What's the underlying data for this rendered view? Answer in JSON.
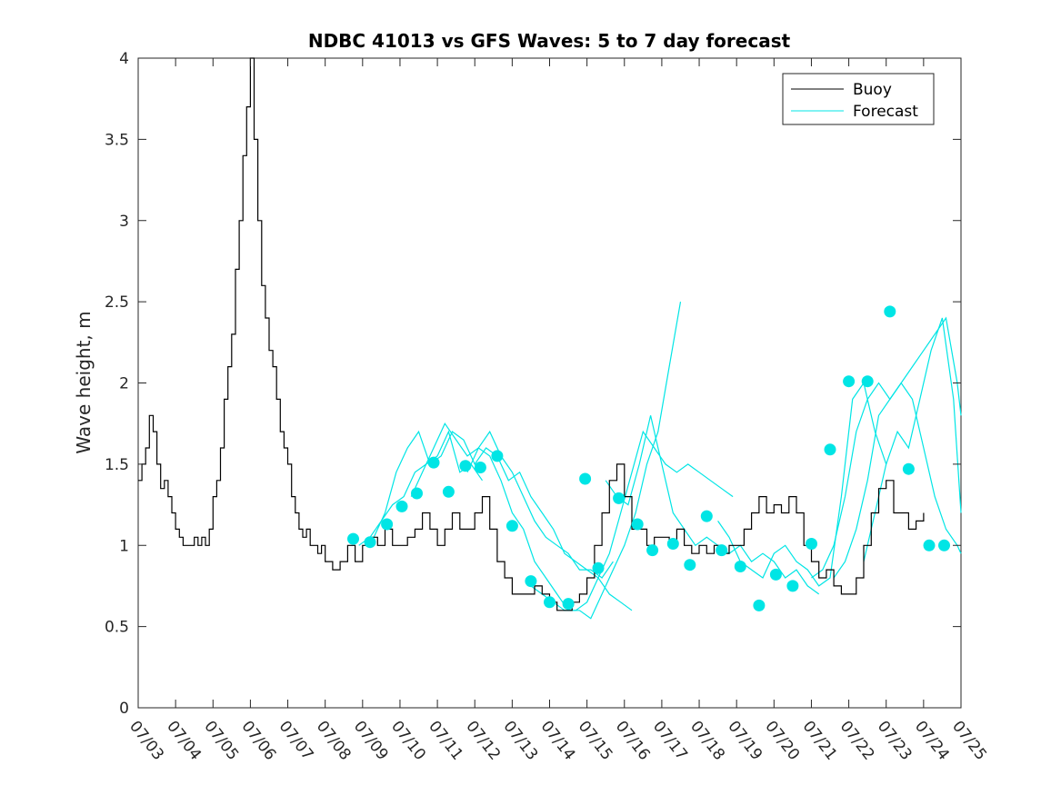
{
  "chart_data": {
    "type": "line",
    "title": "NDBC 41013 vs GFS Waves: 5 to 7 day forecast",
    "xlabel": "",
    "ylabel": "Wave height, m",
    "xlim": [
      0,
      22
    ],
    "ylim": [
      0,
      4
    ],
    "grid": false,
    "legend_position": "top-right",
    "x_tick_labels": [
      "07/03",
      "07/04",
      "07/05",
      "07/06",
      "07/07",
      "07/08",
      "07/09",
      "07/10",
      "07/11",
      "07/12",
      "07/13",
      "07/14",
      "07/15",
      "07/16",
      "07/17",
      "07/18",
      "07/19",
      "07/20",
      "07/21",
      "07/22",
      "07/23",
      "07/24",
      "07/25"
    ],
    "y_ticks": [
      0,
      0.5,
      1,
      1.5,
      2,
      2.5,
      3,
      3.5,
      4
    ],
    "y_tick_labels": [
      "0",
      "0.5",
      "1",
      "1.5",
      "2",
      "2.5",
      "3",
      "3.5",
      "4"
    ],
    "x_unit_note": "x values are days after 07/03",
    "series": [
      {
        "name": "Buoy",
        "color": "#000000",
        "x": [
          0,
          0.1,
          0.2,
          0.3,
          0.4,
          0.5,
          0.6,
          0.7,
          0.8,
          0.9,
          1.0,
          1.1,
          1.2,
          1.3,
          1.4,
          1.5,
          1.6,
          1.7,
          1.8,
          1.9,
          2.0,
          2.1,
          2.2,
          2.3,
          2.4,
          2.5,
          2.6,
          2.7,
          2.8,
          2.9,
          3.0,
          3.1,
          3.2,
          3.3,
          3.4,
          3.5,
          3.6,
          3.7,
          3.8,
          3.9,
          4.0,
          4.1,
          4.2,
          4.3,
          4.4,
          4.5,
          4.6,
          4.7,
          4.8,
          4.9,
          5.0,
          5.2,
          5.4,
          5.6,
          5.8,
          6.0,
          6.2,
          6.4,
          6.6,
          6.8,
          7.0,
          7.2,
          7.4,
          7.6,
          7.8,
          8.0,
          8.2,
          8.4,
          8.6,
          8.8,
          9.0,
          9.2,
          9.4,
          9.6,
          9.8,
          10.0,
          10.2,
          10.4,
          10.6,
          10.8,
          11.0,
          11.2,
          11.4,
          11.6,
          11.8,
          12.0,
          12.2,
          12.4,
          12.6,
          12.8,
          13.0,
          13.2,
          13.4,
          13.6,
          13.8,
          14.0,
          14.2,
          14.4,
          14.6,
          14.8,
          15.0,
          15.2,
          15.4,
          15.6,
          15.8,
          16.0,
          16.2,
          16.4,
          16.6,
          16.8,
          17.0,
          17.2,
          17.4,
          17.6,
          17.8,
          18.0,
          18.2,
          18.4,
          18.6,
          18.8,
          19.0,
          19.2,
          19.4,
          19.6,
          19.8,
          20.0,
          20.2,
          20.4,
          20.6,
          20.8,
          21.0
        ],
        "y": [
          1.4,
          1.5,
          1.6,
          1.8,
          1.7,
          1.5,
          1.35,
          1.4,
          1.3,
          1.2,
          1.1,
          1.05,
          1.0,
          1.0,
          1.0,
          1.05,
          1.0,
          1.05,
          1.0,
          1.1,
          1.3,
          1.4,
          1.6,
          1.9,
          2.1,
          2.3,
          2.7,
          3.0,
          3.4,
          3.7,
          4.0,
          3.5,
          3.0,
          2.6,
          2.4,
          2.2,
          2.1,
          1.9,
          1.7,
          1.6,
          1.5,
          1.3,
          1.2,
          1.1,
          1.05,
          1.1,
          1.0,
          1.0,
          0.95,
          1.0,
          0.9,
          0.85,
          0.9,
          1.0,
          0.9,
          1.0,
          1.05,
          1.0,
          1.1,
          1.0,
          1.0,
          1.05,
          1.1,
          1.2,
          1.1,
          1.0,
          1.1,
          1.2,
          1.1,
          1.1,
          1.2,
          1.3,
          1.1,
          0.9,
          0.8,
          0.7,
          0.7,
          0.7,
          0.75,
          0.7,
          0.65,
          0.6,
          0.6,
          0.65,
          0.7,
          0.8,
          1.0,
          1.2,
          1.4,
          1.5,
          1.3,
          1.1,
          1.1,
          1.0,
          1.05,
          1.05,
          1.0,
          1.1,
          1.0,
          0.95,
          1.0,
          0.95,
          1.0,
          0.95,
          1.0,
          1.0,
          1.1,
          1.2,
          1.3,
          1.2,
          1.25,
          1.2,
          1.3,
          1.2,
          1.0,
          0.9,
          0.8,
          0.85,
          0.75,
          0.7,
          0.7,
          0.8,
          1.0,
          1.2,
          1.35,
          1.4,
          1.2,
          1.2,
          1.1,
          1.15,
          1.2
        ]
      },
      {
        "name": "Forecast",
        "color": "#00e5e5",
        "lines": [
          {
            "x": [
              5.9,
              6.2,
              6.5,
              6.8,
              7.1,
              7.4,
              7.7,
              8.0,
              8.3,
              8.6,
              8.9,
              9.2
            ],
            "y": [
              1.0,
              1.05,
              1.15,
              1.25,
              1.3,
              1.45,
              1.5,
              1.55,
              1.7,
              1.45,
              1.5,
              1.4
            ]
          },
          {
            "x": [
              6.3,
              6.6,
              6.9,
              7.2,
              7.5,
              7.8,
              8.1,
              8.4,
              8.7,
              9.0,
              9.3,
              9.6,
              9.9,
              10.2,
              10.5,
              10.8,
              11.1,
              11.4,
              11.7,
              12.0,
              12.3,
              12.6,
              12.9,
              13.2
            ],
            "y": [
              1.05,
              1.2,
              1.45,
              1.6,
              1.7,
              1.5,
              1.55,
              1.7,
              1.65,
              1.5,
              1.6,
              1.55,
              1.4,
              1.45,
              1.3,
              1.2,
              1.1,
              0.95,
              0.9,
              0.85,
              0.8,
              0.7,
              0.65,
              0.6
            ]
          },
          {
            "x": [
              7.3,
              7.6,
              7.9,
              8.2,
              8.5,
              8.8,
              9.1,
              9.4,
              9.7,
              10.0,
              10.3,
              10.6,
              10.9,
              11.2,
              11.5,
              11.8,
              12.1,
              12.4,
              12.7
            ],
            "y": [
              1.3,
              1.45,
              1.6,
              1.75,
              1.65,
              1.55,
              1.6,
              1.7,
              1.55,
              1.45,
              1.3,
              1.15,
              1.05,
              1.0,
              0.95,
              0.85,
              0.85,
              0.8,
              0.9
            ]
          },
          {
            "x": [
              8.8,
              9.1,
              9.4,
              9.7,
              10.0,
              10.3,
              10.6,
              10.9,
              11.2,
              11.5,
              11.8,
              12.1,
              12.4,
              12.7,
              13.0,
              13.3,
              13.6,
              13.9,
              14.2,
              14.5
            ],
            "y": [
              1.45,
              1.6,
              1.55,
              1.4,
              1.2,
              1.1,
              0.9,
              0.8,
              0.7,
              0.6,
              0.6,
              0.55,
              0.7,
              0.85,
              1.0,
              1.2,
              1.5,
              1.7,
              2.1,
              2.5
            ]
          },
          {
            "x": [
              10.5,
              10.8,
              11.1,
              11.4,
              11.7,
              12.0,
              12.3,
              12.6,
              12.9,
              13.2,
              13.5,
              13.8,
              14.1,
              14.4,
              14.7,
              15.0,
              15.3,
              15.6,
              15.9
            ],
            "y": [
              0.75,
              0.7,
              0.65,
              0.6,
              0.6,
              0.65,
              0.8,
              0.95,
              1.2,
              1.45,
              1.7,
              1.6,
              1.5,
              1.45,
              1.5,
              1.45,
              1.4,
              1.35,
              1.3
            ]
          },
          {
            "x": [
              12.5,
              12.8,
              13.1,
              13.4,
              13.7,
              14.0,
              14.3,
              14.6,
              14.9,
              15.2,
              15.5,
              15.8,
              16.1,
              16.4,
              16.7,
              17.0,
              17.3,
              17.6,
              17.9,
              18.2
            ],
            "y": [
              1.4,
              1.3,
              1.25,
              1.5,
              1.8,
              1.5,
              1.2,
              1.1,
              1.0,
              1.05,
              1.0,
              0.95,
              1.0,
              0.9,
              0.95,
              0.9,
              0.8,
              0.85,
              0.75,
              0.7
            ]
          },
          {
            "x": [
              15.5,
              15.8,
              16.1,
              16.4,
              16.7,
              17.0,
              17.3,
              17.6,
              17.9,
              18.2,
              18.5,
              18.8,
              19.1,
              19.4,
              19.7,
              20.0
            ],
            "y": [
              1.15,
              1.05,
              0.9,
              0.85,
              0.8,
              0.95,
              1.0,
              0.9,
              0.85,
              0.75,
              0.8,
              1.3,
              1.9,
              2.0,
              1.7,
              1.5
            ]
          },
          {
            "x": [
              18.0,
              18.3,
              18.6,
              18.9,
              19.2,
              19.5,
              19.8,
              20.1,
              20.4,
              20.7,
              21.0,
              21.3,
              21.6,
              21.9,
              22.0
            ],
            "y": [
              0.8,
              0.85,
              1.0,
              1.3,
              1.7,
              1.9,
              2.0,
              1.9,
              2.0,
              2.1,
              2.2,
              2.3,
              2.4,
              2.0,
              1.8
            ]
          },
          {
            "x": [
              18.6,
              18.9,
              19.2,
              19.5,
              19.8,
              20.1,
              20.4,
              20.7,
              21.0,
              21.3,
              21.6,
              21.9,
              22.0
            ],
            "y": [
              0.8,
              0.9,
              1.1,
              1.4,
              1.8,
              1.9,
              2.0,
              1.9,
              1.6,
              1.3,
              1.1,
              1.0,
              0.95
            ]
          },
          {
            "x": [
              19.4,
              19.7,
              20.0,
              20.3,
              20.6,
              20.9,
              21.2,
              21.5,
              21.8,
              22.0
            ],
            "y": [
              0.9,
              1.2,
              1.5,
              1.7,
              1.6,
              1.9,
              2.2,
              2.4,
              1.9,
              1.2
            ]
          }
        ],
        "markers": {
          "x": [
            5.75,
            6.2,
            6.65,
            7.05,
            7.45,
            7.9,
            8.3,
            8.75,
            9.15,
            9.6,
            10.0,
            10.5,
            11.0,
            11.5,
            11.95,
            12.3,
            12.85,
            13.35,
            13.75,
            14.3,
            14.75,
            15.2,
            15.6,
            16.1,
            16.6,
            17.05,
            17.5,
            18.0,
            18.5,
            19.0,
            19.5,
            20.1,
            20.6,
            21.15,
            21.55
          ],
          "y": [
            1.04,
            1.02,
            1.13,
            1.24,
            1.32,
            1.51,
            1.33,
            1.49,
            1.48,
            1.55,
            1.12,
            0.78,
            0.65,
            0.64,
            1.41,
            0.86,
            1.29,
            1.13,
            0.97,
            1.01,
            0.88,
            1.18,
            0.97,
            0.87,
            0.63,
            0.82,
            0.75,
            1.01,
            1.59,
            2.01,
            2.01,
            2.44,
            1.47,
            1.0,
            1.0
          ]
        }
      }
    ]
  }
}
